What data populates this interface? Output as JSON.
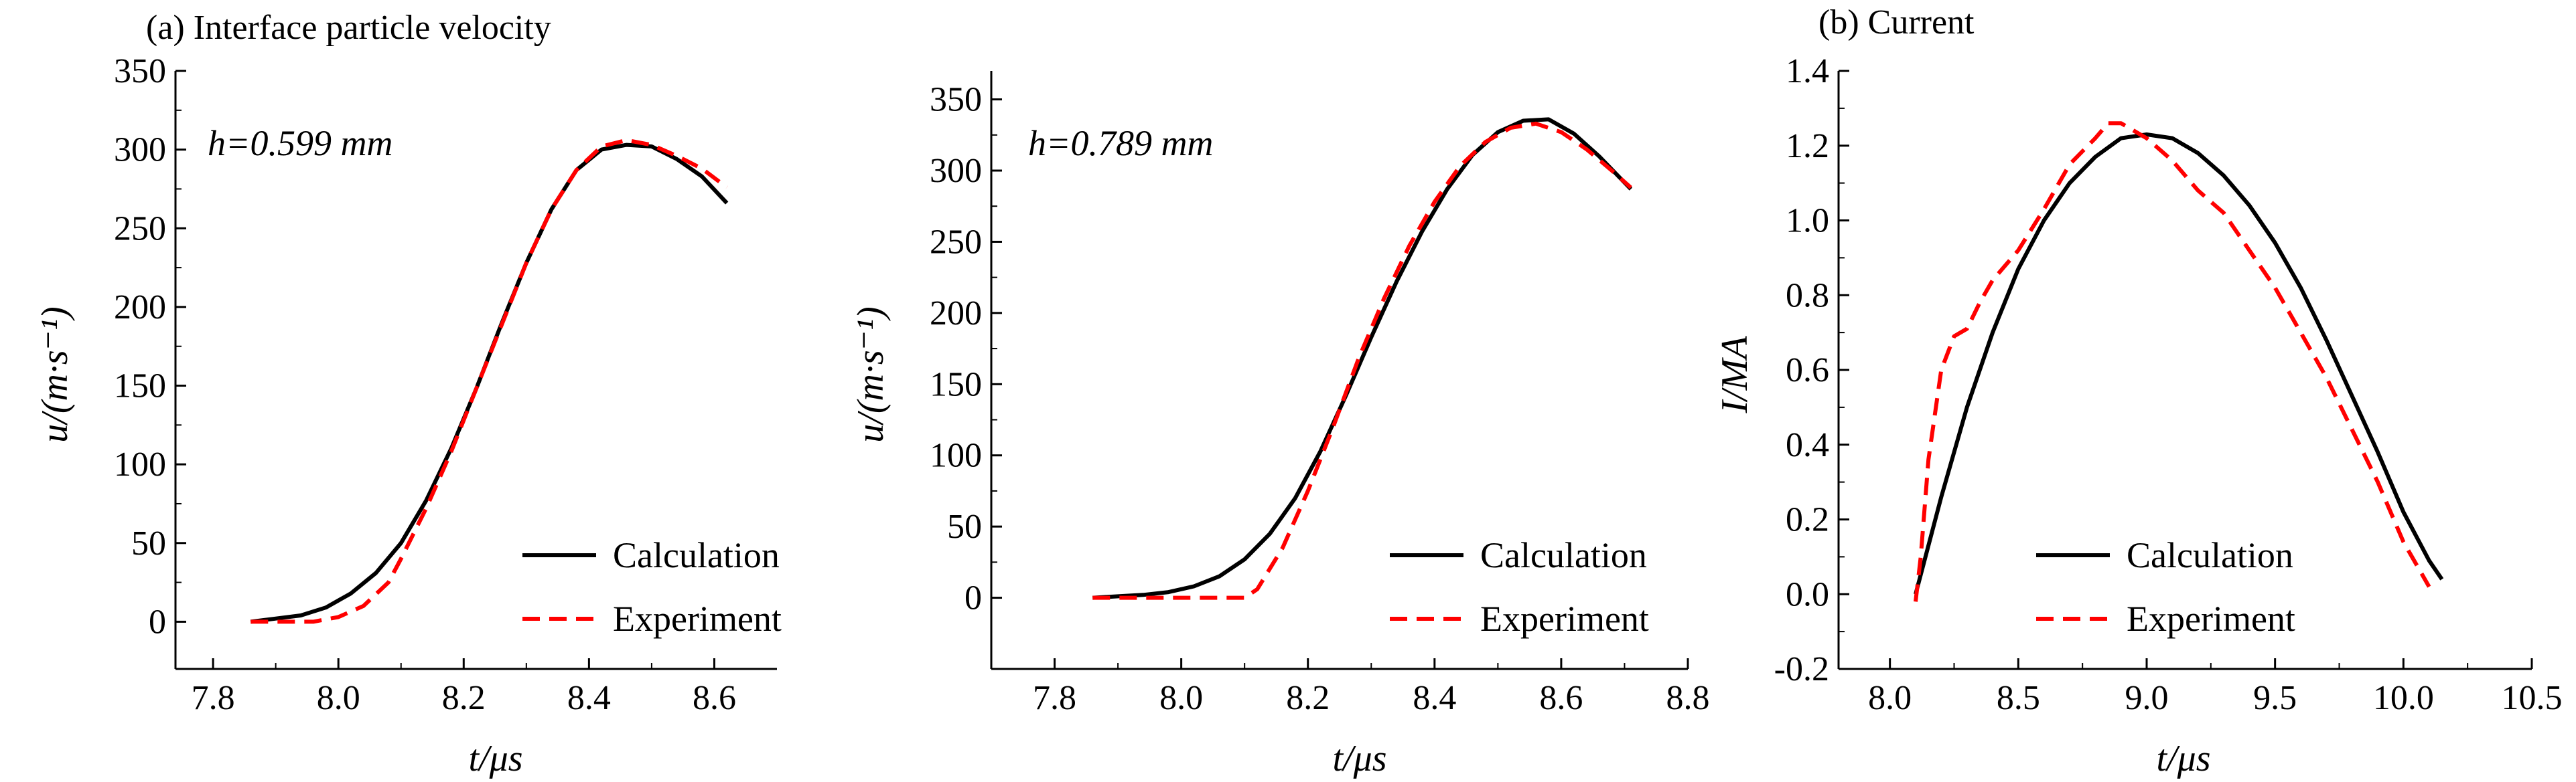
{
  "figure": {
    "charts": [
      {
        "panel_title": "(a) Interface particle velocity",
        "annotation": "h=0.599 mm",
        "ylabel": "u/(m·s⁻¹)",
        "xlabel": "t/μs"
      },
      {
        "panel_title": "",
        "annotation": "h=0.789 mm",
        "ylabel": "u/(m·s⁻¹)",
        "xlabel": "t/μs"
      },
      {
        "panel_title": "(b) Current",
        "annotation": "",
        "ylabel": "I/MA",
        "xlabel": "t/μs"
      }
    ]
  },
  "chart_data": [
    {
      "type": "line",
      "title": "(a) Interface particle velocity",
      "annotation": "h=0.599 mm",
      "xlabel": "t/μs",
      "ylabel": "u/(m·s⁻¹)",
      "xlim": [
        7.74,
        8.7
      ],
      "ylim": [
        -30,
        350
      ],
      "xticks": [
        7.8,
        8.0,
        8.2,
        8.4,
        8.6
      ],
      "yticks": [
        0,
        50,
        100,
        150,
        200,
        250,
        300,
        350
      ],
      "grid": false,
      "legend_position": "bottom-right",
      "series": [
        {
          "name": "Calculation",
          "color": "#000000",
          "dash": "solid",
          "x": [
            7.86,
            7.9,
            7.94,
            7.98,
            8.02,
            8.06,
            8.1,
            8.14,
            8.18,
            8.22,
            8.26,
            8.3,
            8.34,
            8.38,
            8.42,
            8.46,
            8.5,
            8.54,
            8.58,
            8.62
          ],
          "y": [
            0,
            2,
            4,
            9,
            18,
            31,
            50,
            77,
            110,
            148,
            189,
            228,
            262,
            287,
            300,
            303,
            302,
            294,
            283,
            266
          ]
        },
        {
          "name": "Experiment",
          "color": "#ff0000",
          "dash": "dashed",
          "x": [
            7.86,
            7.92,
            7.96,
            8.0,
            8.04,
            8.08,
            8.1,
            8.14,
            8.18,
            8.22,
            8.26,
            8.3,
            8.34,
            8.38,
            8.42,
            8.46,
            8.5,
            8.54,
            8.58,
            8.62
          ],
          "y": [
            0,
            0,
            0,
            3,
            10,
            25,
            40,
            72,
            108,
            148,
            188,
            228,
            262,
            287,
            302,
            306,
            303,
            296,
            288,
            276
          ]
        }
      ]
    },
    {
      "type": "line",
      "title": "",
      "annotation": "h=0.789 mm",
      "xlabel": "t/μs",
      "ylabel": "u/(m·s⁻¹)",
      "xlim": [
        7.7,
        8.8
      ],
      "ylim": [
        -50,
        370
      ],
      "xticks": [
        7.8,
        8.0,
        8.2,
        8.4,
        8.6,
        8.8
      ],
      "yticks": [
        0,
        50,
        100,
        150,
        200,
        250,
        300,
        350
      ],
      "grid": false,
      "legend_position": "bottom-right",
      "series": [
        {
          "name": "Calculation",
          "color": "#000000",
          "dash": "solid",
          "x": [
            7.86,
            7.9,
            7.94,
            7.98,
            8.02,
            8.06,
            8.1,
            8.14,
            8.18,
            8.22,
            8.26,
            8.3,
            8.34,
            8.38,
            8.42,
            8.46,
            8.5,
            8.54,
            8.58,
            8.62,
            8.66,
            8.71
          ],
          "y": [
            0,
            1,
            2,
            4,
            8,
            15,
            27,
            45,
            70,
            103,
            142,
            183,
            222,
            257,
            287,
            311,
            327,
            335,
            336,
            326,
            310,
            287
          ]
        },
        {
          "name": "Experiment",
          "color": "#ff0000",
          "dash": "dashed",
          "x": [
            7.86,
            7.92,
            7.98,
            8.04,
            8.1,
            8.12,
            8.16,
            8.2,
            8.24,
            8.28,
            8.32,
            8.36,
            8.4,
            8.44,
            8.48,
            8.52,
            8.56,
            8.6,
            8.64,
            8.68,
            8.71
          ],
          "y": [
            0,
            0,
            0,
            0,
            0,
            6,
            35,
            75,
            120,
            168,
            210,
            247,
            278,
            303,
            320,
            330,
            333,
            327,
            315,
            300,
            288
          ]
        }
      ]
    },
    {
      "type": "line",
      "title": "(b) Current",
      "annotation": "",
      "xlabel": "t/μs",
      "ylabel": "I/MA",
      "xlim": [
        7.8,
        10.5
      ],
      "ylim": [
        -0.2,
        1.4
      ],
      "xticks": [
        8.0,
        8.5,
        9.0,
        9.5,
        10.0,
        10.5
      ],
      "yticks": [
        -0.2,
        0,
        0.2,
        0.4,
        0.6,
        0.8,
        1.0,
        1.2,
        1.4
      ],
      "grid": false,
      "legend_position": "bottom-right",
      "series": [
        {
          "name": "Calculation",
          "color": "#000000",
          "dash": "solid",
          "x": [
            8.1,
            8.2,
            8.3,
            8.4,
            8.5,
            8.6,
            8.7,
            8.8,
            8.9,
            9.0,
            9.1,
            9.2,
            9.3,
            9.4,
            9.5,
            9.6,
            9.7,
            9.8,
            9.9,
            10.0,
            10.1,
            10.15
          ],
          "y": [
            0.0,
            0.26,
            0.5,
            0.7,
            0.87,
            1.0,
            1.1,
            1.17,
            1.22,
            1.23,
            1.22,
            1.18,
            1.12,
            1.04,
            0.94,
            0.82,
            0.68,
            0.53,
            0.38,
            0.22,
            0.09,
            0.04
          ]
        },
        {
          "name": "Experiment",
          "color": "#ff0000",
          "dash": "dashed",
          "x": [
            8.1,
            8.12,
            8.15,
            8.2,
            8.25,
            8.3,
            8.35,
            8.4,
            8.5,
            8.6,
            8.7,
            8.8,
            8.85,
            8.9,
            8.95,
            9.0,
            9.1,
            9.2,
            9.3,
            9.4,
            9.5,
            9.6,
            9.7,
            9.8,
            9.9,
            10.0,
            10.1
          ],
          "y": [
            -0.02,
            0.1,
            0.36,
            0.6,
            0.69,
            0.71,
            0.78,
            0.84,
            0.92,
            1.03,
            1.15,
            1.22,
            1.26,
            1.26,
            1.24,
            1.22,
            1.16,
            1.08,
            1.02,
            0.92,
            0.82,
            0.7,
            0.58,
            0.44,
            0.3,
            0.14,
            0.02
          ]
        }
      ]
    }
  ]
}
